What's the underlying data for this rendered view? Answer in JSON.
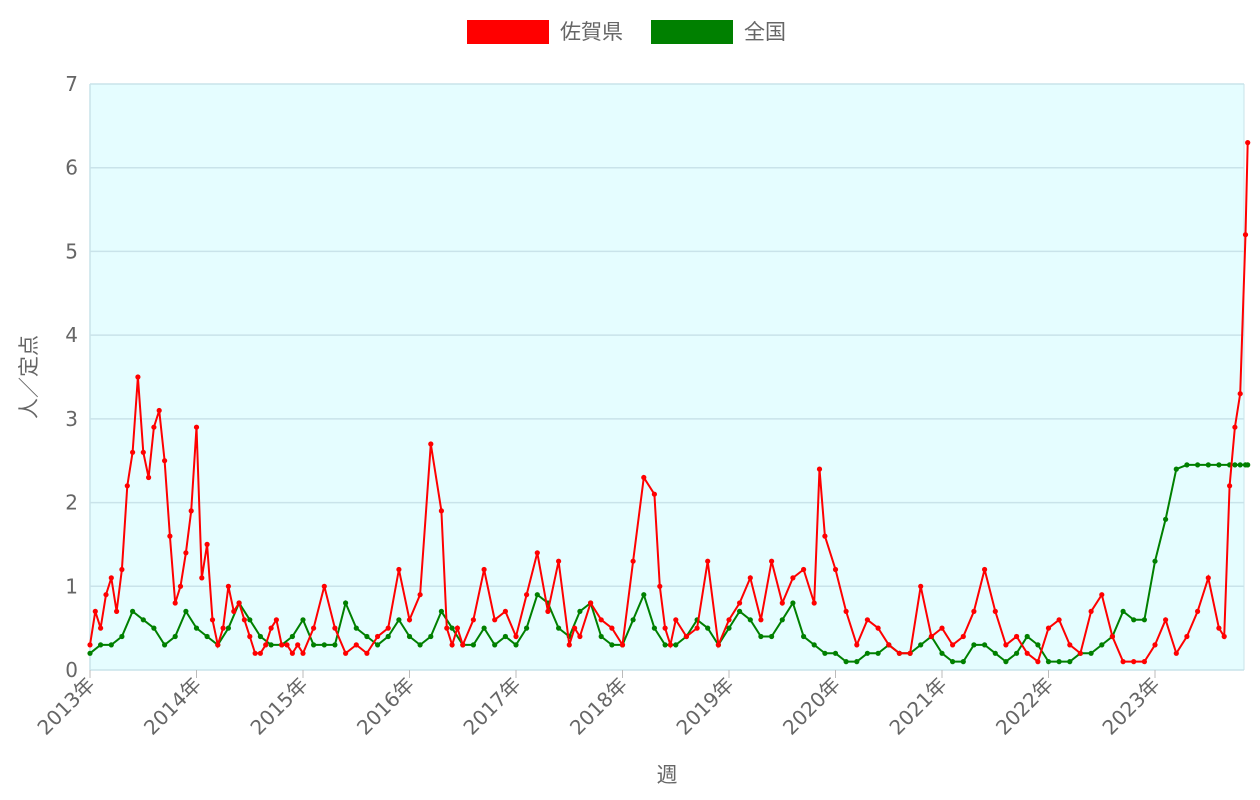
{
  "chart_data": {
    "type": "line",
    "xlabel": "週",
    "ylabel": "人／定点",
    "ylim": [
      0,
      7
    ],
    "yticks": [
      "0",
      "1",
      "2",
      "3",
      "4",
      "5",
      "6",
      "7"
    ],
    "xticks": [
      "2013年",
      "2014年",
      "2015年",
      "2016年",
      "2017年",
      "2018年",
      "2019年",
      "2020年",
      "2021年",
      "2022年",
      "2023年"
    ],
    "x_unit": "year (fractional)",
    "x_range": [
      2013.0,
      2023.87
    ],
    "legend_position": "top-center",
    "grid": true,
    "series": [
      {
        "name": "佐賀県",
        "color": "#ff0000",
        "x": [
          2013.0,
          2013.05,
          2013.1,
          2013.15,
          2013.2,
          2013.25,
          2013.3,
          2013.35,
          2013.4,
          2013.45,
          2013.5,
          2013.55,
          2013.6,
          2013.65,
          2013.7,
          2013.75,
          2013.8,
          2013.85,
          2013.9,
          2013.95,
          2014.0,
          2014.05,
          2014.1,
          2014.15,
          2014.2,
          2014.25,
          2014.3,
          2014.35,
          2014.4,
          2014.45,
          2014.5,
          2014.55,
          2014.6,
          2014.65,
          2014.7,
          2014.75,
          2014.8,
          2014.85,
          2014.9,
          2014.95,
          2015.0,
          2015.1,
          2015.2,
          2015.3,
          2015.4,
          2015.5,
          2015.6,
          2015.7,
          2015.8,
          2015.9,
          2016.0,
          2016.1,
          2016.2,
          2016.3,
          2016.35,
          2016.4,
          2016.45,
          2016.5,
          2016.6,
          2016.7,
          2016.8,
          2016.9,
          2017.0,
          2017.1,
          2017.2,
          2017.3,
          2017.4,
          2017.5,
          2017.55,
          2017.6,
          2017.7,
          2017.8,
          2017.9,
          2018.0,
          2018.1,
          2018.2,
          2018.3,
          2018.35,
          2018.4,
          2018.45,
          2018.5,
          2018.6,
          2018.7,
          2018.8,
          2018.9,
          2019.0,
          2019.1,
          2019.2,
          2019.3,
          2019.4,
          2019.5,
          2019.6,
          2019.7,
          2019.8,
          2019.85,
          2019.9,
          2020.0,
          2020.1,
          2020.2,
          2020.3,
          2020.4,
          2020.5,
          2020.6,
          2020.7,
          2020.8,
          2020.9,
          2021.0,
          2021.1,
          2021.2,
          2021.3,
          2021.4,
          2021.5,
          2021.6,
          2021.7,
          2021.8,
          2021.9,
          2022.0,
          2022.1,
          2022.2,
          2022.3,
          2022.4,
          2022.5,
          2022.6,
          2022.7,
          2022.8,
          2022.9,
          2023.0,
          2023.1,
          2023.2,
          2023.3,
          2023.4,
          2023.5,
          2023.6,
          2023.65,
          2023.7,
          2023.75,
          2023.8,
          2023.85,
          2023.87
        ],
        "values": [
          0.3,
          0.7,
          0.5,
          0.9,
          1.1,
          0.7,
          1.2,
          2.2,
          2.6,
          3.5,
          2.6,
          2.3,
          2.9,
          3.1,
          2.5,
          1.6,
          0.8,
          1.0,
          1.4,
          1.9,
          2.9,
          1.1,
          1.5,
          0.6,
          0.3,
          0.5,
          1.0,
          0.7,
          0.8,
          0.6,
          0.4,
          0.2,
          0.2,
          0.3,
          0.5,
          0.6,
          0.3,
          0.3,
          0.2,
          0.3,
          0.2,
          0.5,
          1.0,
          0.5,
          0.2,
          0.3,
          0.2,
          0.4,
          0.5,
          1.2,
          0.6,
          0.9,
          2.7,
          1.9,
          0.5,
          0.3,
          0.5,
          0.3,
          0.6,
          1.2,
          0.6,
          0.7,
          0.4,
          0.9,
          1.4,
          0.7,
          1.3,
          0.3,
          0.5,
          0.4,
          0.8,
          0.6,
          0.5,
          0.3,
          1.3,
          2.3,
          2.1,
          1.0,
          0.5,
          0.3,
          0.6,
          0.4,
          0.5,
          1.3,
          0.3,
          0.6,
          0.8,
          1.1,
          0.6,
          1.3,
          0.8,
          1.1,
          1.2,
          0.8,
          2.4,
          1.6,
          1.2,
          0.7,
          0.3,
          0.6,
          0.5,
          0.3,
          0.2,
          0.2,
          1.0,
          0.4,
          0.5,
          0.3,
          0.4,
          0.7,
          1.2,
          0.7,
          0.3,
          0.4,
          0.2,
          0.1,
          0.5,
          0.6,
          0.3,
          0.2,
          0.7,
          0.9,
          0.4,
          0.1,
          0.1,
          0.1,
          0.3,
          0.6,
          0.2,
          0.4,
          0.7,
          1.1,
          0.5,
          0.4,
          2.2,
          2.9,
          3.3,
          5.2,
          6.3
        ]
      },
      {
        "name": "全国",
        "color": "#008000",
        "x": [
          2013.0,
          2013.1,
          2013.2,
          2013.3,
          2013.4,
          2013.5,
          2013.6,
          2013.7,
          2013.8,
          2013.9,
          2014.0,
          2014.1,
          2014.2,
          2014.3,
          2014.4,
          2014.5,
          2014.6,
          2014.7,
          2014.8,
          2014.9,
          2015.0,
          2015.1,
          2015.2,
          2015.3,
          2015.4,
          2015.5,
          2015.6,
          2015.7,
          2015.8,
          2015.9,
          2016.0,
          2016.1,
          2016.2,
          2016.3,
          2016.4,
          2016.5,
          2016.6,
          2016.7,
          2016.8,
          2016.9,
          2017.0,
          2017.1,
          2017.2,
          2017.3,
          2017.4,
          2017.5,
          2017.6,
          2017.7,
          2017.8,
          2017.9,
          2018.0,
          2018.1,
          2018.2,
          2018.3,
          2018.4,
          2018.5,
          2018.6,
          2018.7,
          2018.8,
          2018.9,
          2019.0,
          2019.1,
          2019.2,
          2019.3,
          2019.4,
          2019.5,
          2019.6,
          2019.7,
          2019.8,
          2019.9,
          2020.0,
          2020.1,
          2020.2,
          2020.3,
          2020.4,
          2020.5,
          2020.6,
          2020.7,
          2020.8,
          2020.9,
          2021.0,
          2021.1,
          2021.2,
          2021.3,
          2021.4,
          2021.5,
          2021.6,
          2021.7,
          2021.8,
          2021.9,
          2022.0,
          2022.1,
          2022.2,
          2022.3,
          2022.4,
          2022.5,
          2022.6,
          2022.7,
          2022.8,
          2022.9,
          2023.0,
          2023.1,
          2023.2,
          2023.3,
          2023.4,
          2023.5,
          2023.6,
          2023.7,
          2023.75,
          2023.8,
          2023.85,
          2023.87
        ],
        "values": [
          0.2,
          0.3,
          0.3,
          0.4,
          0.7,
          0.6,
          0.5,
          0.3,
          0.4,
          0.7,
          0.5,
          0.4,
          0.3,
          0.5,
          0.8,
          0.6,
          0.4,
          0.3,
          0.3,
          0.4,
          0.6,
          0.3,
          0.3,
          0.3,
          0.8,
          0.5,
          0.4,
          0.3,
          0.4,
          0.6,
          0.4,
          0.3,
          0.4,
          0.7,
          0.5,
          0.3,
          0.3,
          0.5,
          0.3,
          0.4,
          0.3,
          0.5,
          0.9,
          0.8,
          0.5,
          0.4,
          0.7,
          0.8,
          0.4,
          0.3,
          0.3,
          0.6,
          0.9,
          0.5,
          0.3,
          0.3,
          0.4,
          0.6,
          0.5,
          0.3,
          0.5,
          0.7,
          0.6,
          0.4,
          0.4,
          0.6,
          0.8,
          0.4,
          0.3,
          0.2,
          0.2,
          0.1,
          0.1,
          0.2,
          0.2,
          0.3,
          0.2,
          0.2,
          0.3,
          0.4,
          0.2,
          0.1,
          0.1,
          0.3,
          0.3,
          0.2,
          0.1,
          0.2,
          0.4,
          0.3,
          0.1,
          0.1,
          0.1,
          0.2,
          0.2,
          0.3,
          0.4,
          0.7,
          0.6,
          0.6,
          1.3,
          1.8,
          2.4,
          2.45,
          2.45,
          2.45,
          2.45,
          2.45,
          2.45,
          2.45,
          2.45,
          2.45
        ]
      }
    ]
  }
}
